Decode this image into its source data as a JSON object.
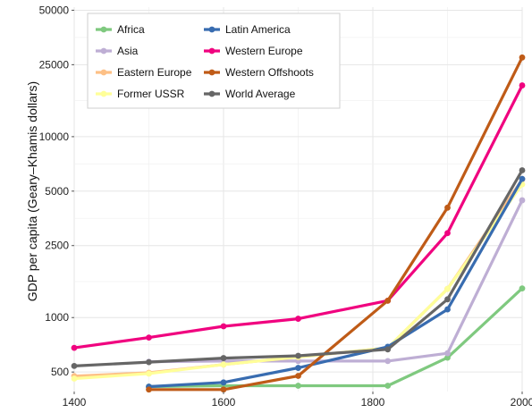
{
  "chart_data": {
    "type": "line",
    "title": "",
    "xlabel": "",
    "ylabel": "GDP per capita (Geary–Khamis dollars)",
    "yscale": "log",
    "xlim": [
      1400,
      2000
    ],
    "ylim": [
      390,
      52000
    ],
    "grid": true,
    "legend_position": "top-left",
    "x_ticks": [
      1400,
      1600,
      1800,
      2000
    ],
    "y_ticks": [
      500,
      1000,
      2500,
      5000,
      10000,
      25000,
      50000
    ],
    "x": [
      1400,
      1500,
      1600,
      1700,
      1820,
      1900,
      2000
    ],
    "series": [
      {
        "name": "Africa",
        "color": "#7fc97f",
        "x": [
          1500,
          1600,
          1700,
          1820,
          1900,
          2000
        ],
        "values": [
          415,
          420,
          420,
          420,
          600,
          1450
        ]
      },
      {
        "name": "Asia",
        "color": "#beaed4",
        "x": [
          1500,
          1600,
          1700,
          1820,
          1900,
          2000
        ],
        "values": [
          570,
          575,
          575,
          575,
          635,
          4450
        ]
      },
      {
        "name": "Eastern Europe",
        "color": "#fdc086",
        "x": [
          1400,
          1500,
          1600,
          1700,
          1820,
          1900,
          2000
        ],
        "values": [
          475,
          495,
          550,
          605,
          680,
          1440,
          5800
        ]
      },
      {
        "name": "Former USSR",
        "color": "#ffff99",
        "x": [
          1400,
          1500,
          1600,
          1700,
          1820,
          1900,
          2000
        ],
        "values": [
          460,
          490,
          550,
          605,
          680,
          1440,
          5450
        ]
      },
      {
        "name": "Latin America",
        "color": "#386cb0",
        "x": [
          1500,
          1600,
          1700,
          1820,
          1900,
          2000
        ],
        "values": [
          415,
          438,
          527,
          690,
          1110,
          5840
        ]
      },
      {
        "name": "Western Europe",
        "color": "#f0027f",
        "x": [
          1400,
          1500,
          1600,
          1700,
          1820,
          1900,
          2000
        ],
        "values": [
          680,
          775,
          895,
          985,
          1240,
          2930,
          19200
        ]
      },
      {
        "name": "Western Offshoots",
        "color": "#bf5b17",
        "x": [
          1500,
          1600,
          1700,
          1820,
          1900,
          2000
        ],
        "values": [
          400,
          400,
          476,
          1240,
          4050,
          27400
        ]
      },
      {
        "name": "World Average",
        "color": "#666666",
        "x": [
          1400,
          1500,
          1600,
          1700,
          1820,
          1900,
          2000
        ],
        "values": [
          540,
          567,
          597,
          615,
          667,
          1262,
          6520
        ]
      }
    ]
  }
}
